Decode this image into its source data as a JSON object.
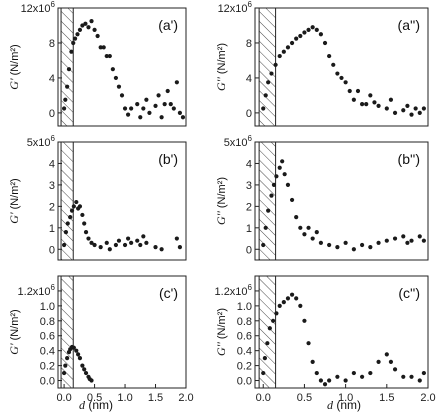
{
  "figure": {
    "xlabel_symbol": "d",
    "xlabel_unit": " (nm)"
  },
  "chart_data": [
    {
      "id": "a1",
      "type": "scatter",
      "panel_label": "(a')",
      "ylabel_symbol": "G'",
      "ylabel_unit": " (N/m²)",
      "xlim": [
        -0.1,
        2.0
      ],
      "ylim": [
        -1.5,
        12.0
      ],
      "y_multiplier_label": "×10⁶",
      "xticks": [],
      "yticks": [
        0,
        4,
        8,
        12
      ],
      "ytick_labels": [
        "0",
        "4",
        "8",
        "12x10⁶"
      ],
      "hatch_x": [
        -0.05,
        0.15
      ],
      "points": [
        [
          0.0,
          0.5
        ],
        [
          0.02,
          1.5
        ],
        [
          0.05,
          3.0
        ],
        [
          0.08,
          5.0
        ],
        [
          0.12,
          7.0
        ],
        [
          0.15,
          8.0
        ],
        [
          0.18,
          8.5
        ],
        [
          0.22,
          9.0
        ],
        [
          0.26,
          9.5
        ],
        [
          0.3,
          10.0
        ],
        [
          0.35,
          10.2
        ],
        [
          0.4,
          9.8
        ],
        [
          0.45,
          10.5
        ],
        [
          0.5,
          9.5
        ],
        [
          0.55,
          8.8
        ],
        [
          0.6,
          7.5
        ],
        [
          0.65,
          7.5
        ],
        [
          0.7,
          6.5
        ],
        [
          0.75,
          6.5
        ],
        [
          0.8,
          5.0
        ],
        [
          0.85,
          4.0
        ],
        [
          0.9,
          3.0
        ],
        [
          0.95,
          2.0
        ],
        [
          1.0,
          0.5
        ],
        [
          1.05,
          -0.2
        ],
        [
          1.1,
          0.5
        ],
        [
          1.2,
          1.0
        ],
        [
          1.25,
          -0.5
        ],
        [
          1.3,
          0.5
        ],
        [
          1.35,
          1.5
        ],
        [
          1.4,
          0.0
        ],
        [
          1.5,
          0.8
        ],
        [
          1.55,
          2.0
        ],
        [
          1.6,
          -0.5
        ],
        [
          1.65,
          1.0
        ],
        [
          1.7,
          2.5
        ],
        [
          1.75,
          1.0
        ],
        [
          1.8,
          0.5
        ],
        [
          1.85,
          3.5
        ],
        [
          1.9,
          0.0
        ],
        [
          1.95,
          -0.5
        ]
      ]
    },
    {
      "id": "a2",
      "type": "scatter",
      "panel_label": "(a'')",
      "ylabel_symbol": "G''",
      "ylabel_unit": " (N/m²)",
      "xlim": [
        -0.1,
        2.0
      ],
      "ylim": [
        -1.5,
        12.0
      ],
      "y_multiplier_label": "×10⁶",
      "xticks": [],
      "yticks": [
        0,
        4,
        8,
        12
      ],
      "ytick_labels": [
        "0",
        "4",
        "8",
        "12x10⁶"
      ],
      "hatch_x": [
        -0.05,
        0.15
      ],
      "points": [
        [
          0.0,
          0.5
        ],
        [
          0.03,
          2.0
        ],
        [
          0.06,
          3.5
        ],
        [
          0.1,
          4.5
        ],
        [
          0.15,
          5.5
        ],
        [
          0.2,
          6.5
        ],
        [
          0.25,
          7.0
        ],
        [
          0.3,
          7.5
        ],
        [
          0.35,
          8.0
        ],
        [
          0.4,
          8.5
        ],
        [
          0.45,
          8.8
        ],
        [
          0.5,
          9.2
        ],
        [
          0.55,
          9.5
        ],
        [
          0.6,
          9.8
        ],
        [
          0.65,
          9.5
        ],
        [
          0.7,
          9.0
        ],
        [
          0.75,
          8.0
        ],
        [
          0.8,
          6.5
        ],
        [
          0.85,
          5.5
        ],
        [
          0.9,
          4.5
        ],
        [
          0.95,
          4.0
        ],
        [
          1.0,
          3.5
        ],
        [
          1.05,
          2.5
        ],
        [
          1.1,
          1.5
        ],
        [
          1.15,
          2.5
        ],
        [
          1.2,
          1.0
        ],
        [
          1.25,
          1.0
        ],
        [
          1.3,
          2.0
        ],
        [
          1.35,
          1.2
        ],
        [
          1.4,
          0.8
        ],
        [
          1.5,
          0.5
        ],
        [
          1.55,
          1.5
        ],
        [
          1.6,
          0.0
        ],
        [
          1.7,
          0.3
        ],
        [
          1.75,
          0.8
        ],
        [
          1.8,
          -0.2
        ],
        [
          1.85,
          0.5
        ],
        [
          1.9,
          0.0
        ],
        [
          1.95,
          0.5
        ]
      ]
    },
    {
      "id": "b1",
      "type": "scatter",
      "panel_label": "(b')",
      "ylabel_symbol": "G'",
      "ylabel_unit": " (N/m²)",
      "xlim": [
        -0.1,
        2.0
      ],
      "ylim": [
        -0.5,
        5.0
      ],
      "y_multiplier_label": "×10⁶",
      "xticks": [],
      "yticks": [
        0,
        1,
        2,
        3,
        4,
        5
      ],
      "ytick_labels": [
        "0",
        "1",
        "2",
        "3",
        "4",
        "5x10⁶"
      ],
      "hatch_x": [
        -0.05,
        0.15
      ],
      "points": [
        [
          0.0,
          0.2
        ],
        [
          0.03,
          0.8
        ],
        [
          0.06,
          1.2
        ],
        [
          0.1,
          1.5
        ],
        [
          0.13,
          1.8
        ],
        [
          0.16,
          2.0
        ],
        [
          0.2,
          2.2
        ],
        [
          0.23,
          1.9
        ],
        [
          0.26,
          2.0
        ],
        [
          0.3,
          1.6
        ],
        [
          0.33,
          1.2
        ],
        [
          0.36,
          0.8
        ],
        [
          0.4,
          0.5
        ],
        [
          0.45,
          0.3
        ],
        [
          0.5,
          0.2
        ],
        [
          0.6,
          0.1
        ],
        [
          0.7,
          0.3
        ],
        [
          0.75,
          0.0
        ],
        [
          0.85,
          0.2
        ],
        [
          0.9,
          0.4
        ],
        [
          1.0,
          0.2
        ],
        [
          1.05,
          0.5
        ],
        [
          1.1,
          0.3
        ],
        [
          1.2,
          0.4
        ],
        [
          1.25,
          0.2
        ],
        [
          1.3,
          0.6
        ],
        [
          1.35,
          0.3
        ],
        [
          1.5,
          0.1
        ],
        [
          1.6,
          0.0
        ],
        [
          1.85,
          0.5
        ],
        [
          1.9,
          0.1
        ]
      ]
    },
    {
      "id": "b2",
      "type": "scatter",
      "panel_label": "(b'')",
      "ylabel_symbol": "G''",
      "ylabel_unit": " (N/m²)",
      "xlim": [
        -0.1,
        2.0
      ],
      "ylim": [
        -0.5,
        5.0
      ],
      "y_multiplier_label": "×10⁶",
      "xticks": [],
      "yticks": [
        0,
        1,
        2,
        3,
        4,
        5
      ],
      "ytick_labels": [
        "0",
        "1",
        "2",
        "3",
        "4",
        "5x10⁶"
      ],
      "hatch_x": [
        -0.05,
        0.15
      ],
      "points": [
        [
          0.0,
          0.2
        ],
        [
          0.03,
          1.0
        ],
        [
          0.06,
          1.8
        ],
        [
          0.1,
          2.5
        ],
        [
          0.13,
          3.0
        ],
        [
          0.16,
          3.4
        ],
        [
          0.2,
          3.8
        ],
        [
          0.23,
          4.1
        ],
        [
          0.26,
          3.5
        ],
        [
          0.3,
          3.0
        ],
        [
          0.35,
          2.3
        ],
        [
          0.4,
          1.5
        ],
        [
          0.45,
          1.0
        ],
        [
          0.5,
          0.7
        ],
        [
          0.55,
          1.0
        ],
        [
          0.6,
          0.5
        ],
        [
          0.65,
          0.8
        ],
        [
          0.7,
          0.3
        ],
        [
          0.8,
          0.2
        ],
        [
          0.9,
          0.1
        ],
        [
          1.0,
          0.3
        ],
        [
          1.1,
          0.0
        ],
        [
          1.2,
          0.2
        ],
        [
          1.3,
          0.1
        ],
        [
          1.4,
          0.3
        ],
        [
          1.5,
          0.4
        ],
        [
          1.6,
          0.5
        ],
        [
          1.7,
          0.6
        ],
        [
          1.75,
          0.3
        ],
        [
          1.8,
          0.4
        ],
        [
          1.9,
          0.6
        ],
        [
          1.95,
          0.4
        ]
      ]
    },
    {
      "id": "c1",
      "type": "scatter",
      "panel_label": "(c')",
      "ylabel_symbol": "G'",
      "ylabel_unit": " (N/m²)",
      "xlim": [
        -0.1,
        2.0
      ],
      "ylim": [
        -0.1,
        1.4
      ],
      "y_multiplier_label": "×10⁶",
      "xticks": [
        0.0,
        0.5,
        1.0,
        1.5,
        2.0
      ],
      "xtick_labels": [
        "0.0",
        "0.5",
        "1.0",
        "1.5",
        "2.0"
      ],
      "yticks": [
        0.0,
        0.2,
        0.4,
        0.6,
        0.8,
        1.0,
        1.2
      ],
      "ytick_labels": [
        "0.0",
        "0.2",
        "0.4",
        "0.6",
        "0.8",
        "1.0",
        "1.2x10⁶"
      ],
      "hatch_x": [
        -0.05,
        0.15
      ],
      "points": [
        [
          0.0,
          0.1
        ],
        [
          0.02,
          0.2
        ],
        [
          0.05,
          0.3
        ],
        [
          0.08,
          0.38
        ],
        [
          0.1,
          0.42
        ],
        [
          0.13,
          0.45
        ],
        [
          0.16,
          0.44
        ],
        [
          0.2,
          0.4
        ],
        [
          0.23,
          0.35
        ],
        [
          0.26,
          0.3
        ],
        [
          0.3,
          0.2
        ],
        [
          0.33,
          0.15
        ],
        [
          0.36,
          0.1
        ],
        [
          0.4,
          0.05
        ],
        [
          0.42,
          0.02
        ],
        [
          0.45,
          0.0
        ]
      ]
    },
    {
      "id": "c2",
      "type": "scatter",
      "panel_label": "(c'')",
      "ylabel_symbol": "G''",
      "ylabel_unit": " (N/m²)",
      "xlim": [
        -0.1,
        2.0
      ],
      "ylim": [
        -0.1,
        1.4
      ],
      "y_multiplier_label": "×10⁶",
      "xticks": [
        0.0,
        0.5,
        1.0,
        1.5,
        2.0
      ],
      "xtick_labels": [
        "0.0",
        "0.5",
        "1.0",
        "1.5",
        "2.0"
      ],
      "yticks": [
        0.0,
        0.2,
        0.4,
        0.6,
        0.8,
        1.0,
        1.2
      ],
      "ytick_labels": [
        "0.0",
        "0.2",
        "0.4",
        "0.6",
        "0.8",
        "1.0",
        "1.2x10⁶"
      ],
      "hatch_x": [
        -0.05,
        0.15
      ],
      "points": [
        [
          0.0,
          0.1
        ],
        [
          0.02,
          0.3
        ],
        [
          0.05,
          0.5
        ],
        [
          0.08,
          0.7
        ],
        [
          0.12,
          0.8
        ],
        [
          0.16,
          0.9
        ],
        [
          0.2,
          1.0
        ],
        [
          0.25,
          1.05
        ],
        [
          0.3,
          1.1
        ],
        [
          0.35,
          1.15
        ],
        [
          0.4,
          1.1
        ],
        [
          0.45,
          1.0
        ],
        [
          0.5,
          0.8
        ],
        [
          0.55,
          0.5
        ],
        [
          0.6,
          0.25
        ],
        [
          0.65,
          0.1
        ],
        [
          0.7,
          0.0
        ],
        [
          0.75,
          -0.05
        ],
        [
          0.8,
          0.0
        ],
        [
          0.9,
          0.05
        ],
        [
          1.0,
          0.0
        ],
        [
          1.1,
          0.1
        ],
        [
          1.2,
          0.05
        ],
        [
          1.3,
          0.1
        ],
        [
          1.4,
          0.25
        ],
        [
          1.5,
          0.35
        ],
        [
          1.55,
          0.25
        ],
        [
          1.6,
          0.15
        ],
        [
          1.7,
          0.05
        ],
        [
          1.8,
          0.05
        ],
        [
          1.9,
          0.0
        ],
        [
          1.95,
          0.1
        ]
      ]
    }
  ]
}
